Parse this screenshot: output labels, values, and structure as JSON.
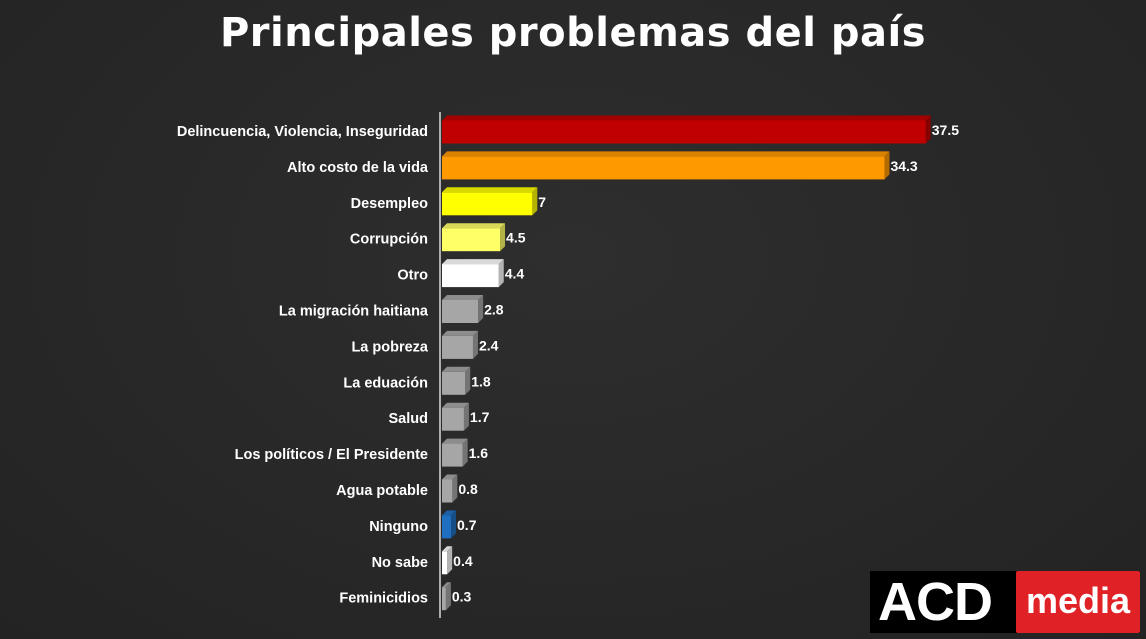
{
  "chart_data": {
    "type": "bar",
    "orientation": "horizontal",
    "title": "Principales problemas del país",
    "categories": [
      "Delincuencia, Violencia, Inseguridad",
      "Alto costo de la vida",
      "Desempleo",
      "Corrupción",
      "Otro",
      "La migración haitiana",
      "La pobreza",
      "La eduación",
      "Salud",
      "Los políticos / El Presidente",
      "Agua potable",
      "Ninguno",
      "No sabe",
      "Feminicidios"
    ],
    "values": [
      37.5,
      34.3,
      7,
      4.5,
      4.4,
      2.8,
      2.4,
      1.8,
      1.7,
      1.6,
      0.8,
      0.7,
      0.4,
      0.3
    ],
    "value_labels": [
      "37.5",
      "34.3",
      "7",
      "4.5",
      "4.4",
      "2.8",
      "2.4",
      "1.8",
      "1.7",
      "1.6",
      "0.8",
      "0.7",
      "0.4",
      "0.3"
    ],
    "colors": [
      "#c00000",
      "#ff9900",
      "#ffff00",
      "#ffff66",
      "#ffffff",
      "#a6a6a6",
      "#a6a6a6",
      "#a6a6a6",
      "#a6a6a6",
      "#a6a6a6",
      "#a6a6a6",
      "#1f6fc0",
      "#ffffff",
      "#a6a6a6"
    ],
    "xlim": [
      0,
      38
    ],
    "grid": false,
    "style": "3d"
  },
  "logo": {
    "left": "ACD",
    "right": "media"
  }
}
